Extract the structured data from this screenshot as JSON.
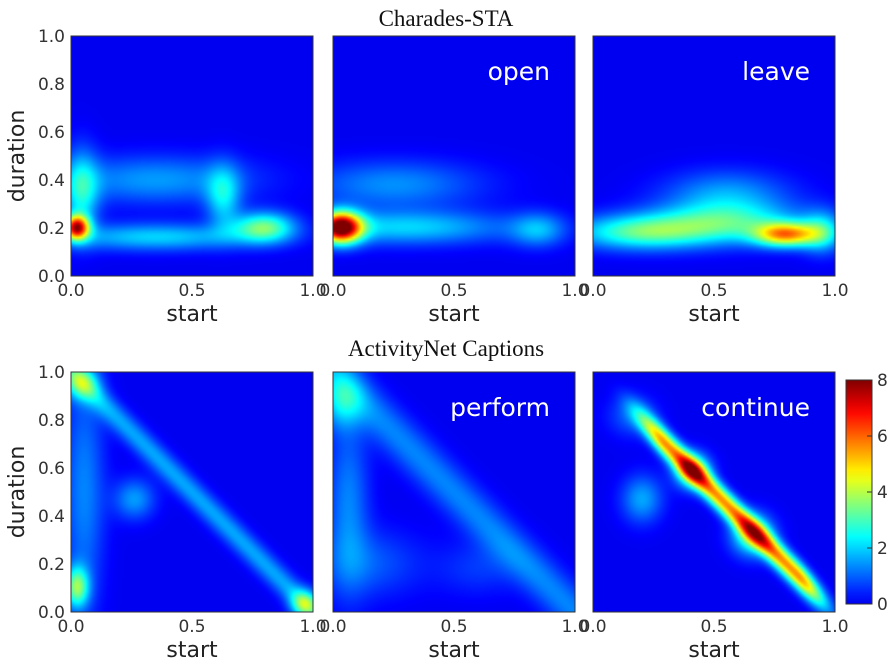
{
  "colormap": "jet",
  "colormap_stops": [
    "#00007f",
    "#0000ff",
    "#007fff",
    "#00ffff",
    "#7fff7f",
    "#ffff00",
    "#ff7f00",
    "#ff0000",
    "#7f0000"
  ],
  "rows": [
    {
      "title": "Charades-STA",
      "panels": [
        {
          "word": "",
          "xlabel": "start",
          "ylabel": "duration",
          "show_ylabel": true,
          "xlim": [
            0,
            1
          ],
          "ylim": [
            0,
            1
          ],
          "xticks": [
            "0.0",
            "0.5",
            "1.0"
          ],
          "yticks": [
            "0.0",
            "0.2",
            "0.4",
            "0.6",
            "0.8",
            "1.0"
          ],
          "components": [
            {
              "x": 0.02,
              "y": 0.2,
              "sx": 0.035,
              "sy": 0.035,
              "w": 6.5
            },
            {
              "x": 0.35,
              "y": 0.16,
              "sx": 0.28,
              "sy": 0.04,
              "w": 2.0
            },
            {
              "x": 0.8,
              "y": 0.2,
              "sx": 0.09,
              "sy": 0.045,
              "w": 3.3
            },
            {
              "x": 0.63,
              "y": 0.33,
              "sx": 0.05,
              "sy": 0.09,
              "w": 2.0
            },
            {
              "x": 0.35,
              "y": 0.4,
              "sx": 0.28,
              "sy": 0.07,
              "w": 1.5
            },
            {
              "x": 0.04,
              "y": 0.35,
              "sx": 0.05,
              "sy": 0.12,
              "w": 2.3
            }
          ]
        },
        {
          "word": "open",
          "xlabel": "start",
          "ylabel": "",
          "show_ylabel": false,
          "xlim": [
            0,
            1
          ],
          "ylim": [
            0,
            1
          ],
          "xticks": [
            "0.0",
            "0.5",
            "1.0"
          ],
          "yticks": [],
          "components": [
            {
              "x": 0.03,
              "y": 0.2,
              "sx": 0.06,
              "sy": 0.045,
              "w": 8.0
            },
            {
              "x": 0.3,
              "y": 0.2,
              "sx": 0.3,
              "sy": 0.05,
              "w": 2.0
            },
            {
              "x": 0.85,
              "y": 0.19,
              "sx": 0.08,
              "sy": 0.05,
              "w": 1.6
            },
            {
              "x": 0.25,
              "y": 0.38,
              "sx": 0.25,
              "sy": 0.07,
              "w": 1.4
            }
          ]
        },
        {
          "word": "leave",
          "xlabel": "start",
          "ylabel": "",
          "show_ylabel": false,
          "xlim": [
            0,
            1
          ],
          "ylim": [
            0,
            1
          ],
          "xticks": [
            "0.0",
            "0.5",
            "1.0"
          ],
          "yticks": [],
          "components": [
            {
              "x": 0.2,
              "y": 0.18,
              "sx": 0.2,
              "sy": 0.05,
              "w": 3.0
            },
            {
              "x": 0.8,
              "y": 0.17,
              "sx": 0.09,
              "sy": 0.035,
              "w": 5.0
            },
            {
              "x": 0.55,
              "y": 0.22,
              "sx": 0.22,
              "sy": 0.06,
              "w": 2.6
            },
            {
              "x": 0.55,
              "y": 0.34,
              "sx": 0.18,
              "sy": 0.07,
              "w": 1.5
            },
            {
              "x": 0.95,
              "y": 0.18,
              "sx": 0.06,
              "sy": 0.06,
              "w": 2.2
            }
          ]
        }
      ]
    },
    {
      "title": "ActivityNet Captions",
      "panels": [
        {
          "word": "",
          "xlabel": "start",
          "ylabel": "duration",
          "show_ylabel": true,
          "xlim": [
            0,
            1
          ],
          "ylim": [
            0,
            1
          ],
          "xticks": [
            "0.0",
            "0.5",
            "1.0"
          ],
          "yticks": [
            "0.0",
            "0.2",
            "0.4",
            "0.6",
            "0.8",
            "1.0"
          ],
          "components": [
            {
              "x": 0.02,
              "y": 0.1,
              "sx": 0.035,
              "sy": 0.06,
              "w": 3.3
            },
            {
              "x": 0.04,
              "y": 0.96,
              "sx": 0.05,
              "sy": 0.05,
              "w": 2.3
            },
            {
              "x": 0.26,
              "y": 0.47,
              "sx": 0.06,
              "sy": 0.06,
              "w": 1.5
            },
            {
              "x": 0.05,
              "y": 0.5,
              "sx": 0.06,
              "sy": 0.35,
              "w": 1.3
            }
          ],
          "diag": {
            "w": 1.6,
            "sigma": 0.035,
            "end_w": 2.8
          }
        },
        {
          "word": "perform",
          "xlabel": "start",
          "ylabel": "",
          "show_ylabel": false,
          "xlim": [
            0,
            1
          ],
          "ylim": [
            0,
            1
          ],
          "xticks": [
            "0.0",
            "0.5",
            "1.0"
          ],
          "yticks": [],
          "components": [
            {
              "x": 0.03,
              "y": 0.88,
              "sx": 0.06,
              "sy": 0.08,
              "w": 1.8
            },
            {
              "x": 0.06,
              "y": 0.45,
              "sx": 0.06,
              "sy": 0.25,
              "w": 1.3
            },
            {
              "x": 0.15,
              "y": 0.2,
              "sx": 0.15,
              "sy": 0.1,
              "w": 0.9
            },
            {
              "x": 0.6,
              "y": 0.18,
              "sx": 0.12,
              "sy": 0.08,
              "w": 0.6
            }
          ],
          "diag": {
            "w": 1.3,
            "sigma": 0.06,
            "end_w": 0.0
          }
        },
        {
          "word": "continue",
          "xlabel": "start",
          "ylabel": "",
          "show_ylabel": false,
          "xlim": [
            0,
            1
          ],
          "ylim": [
            0,
            1
          ],
          "xticks": [
            "0.0",
            "0.5",
            "1.0"
          ],
          "yticks": [],
          "components": [
            {
              "x": 0.41,
              "y": 0.59,
              "sx": 0.05,
              "sy": 0.05,
              "w": 3.5
            },
            {
              "x": 0.66,
              "y": 0.32,
              "sx": 0.06,
              "sy": 0.06,
              "w": 3.0
            },
            {
              "x": 0.2,
              "y": 0.47,
              "sx": 0.06,
              "sy": 0.07,
              "w": 1.6
            },
            {
              "x": 0.16,
              "y": 0.82,
              "sx": 0.07,
              "sy": 0.06,
              "w": 1.0
            }
          ],
          "diag": {
            "w": 5.6,
            "sigma": 0.03,
            "t0": 0.3,
            "t1": 0.85,
            "end_w": 0.0
          }
        }
      ]
    }
  ],
  "colorbar": {
    "min": 0,
    "max": 8,
    "ticks": [
      "0",
      "2",
      "4",
      "6",
      "8"
    ]
  }
}
